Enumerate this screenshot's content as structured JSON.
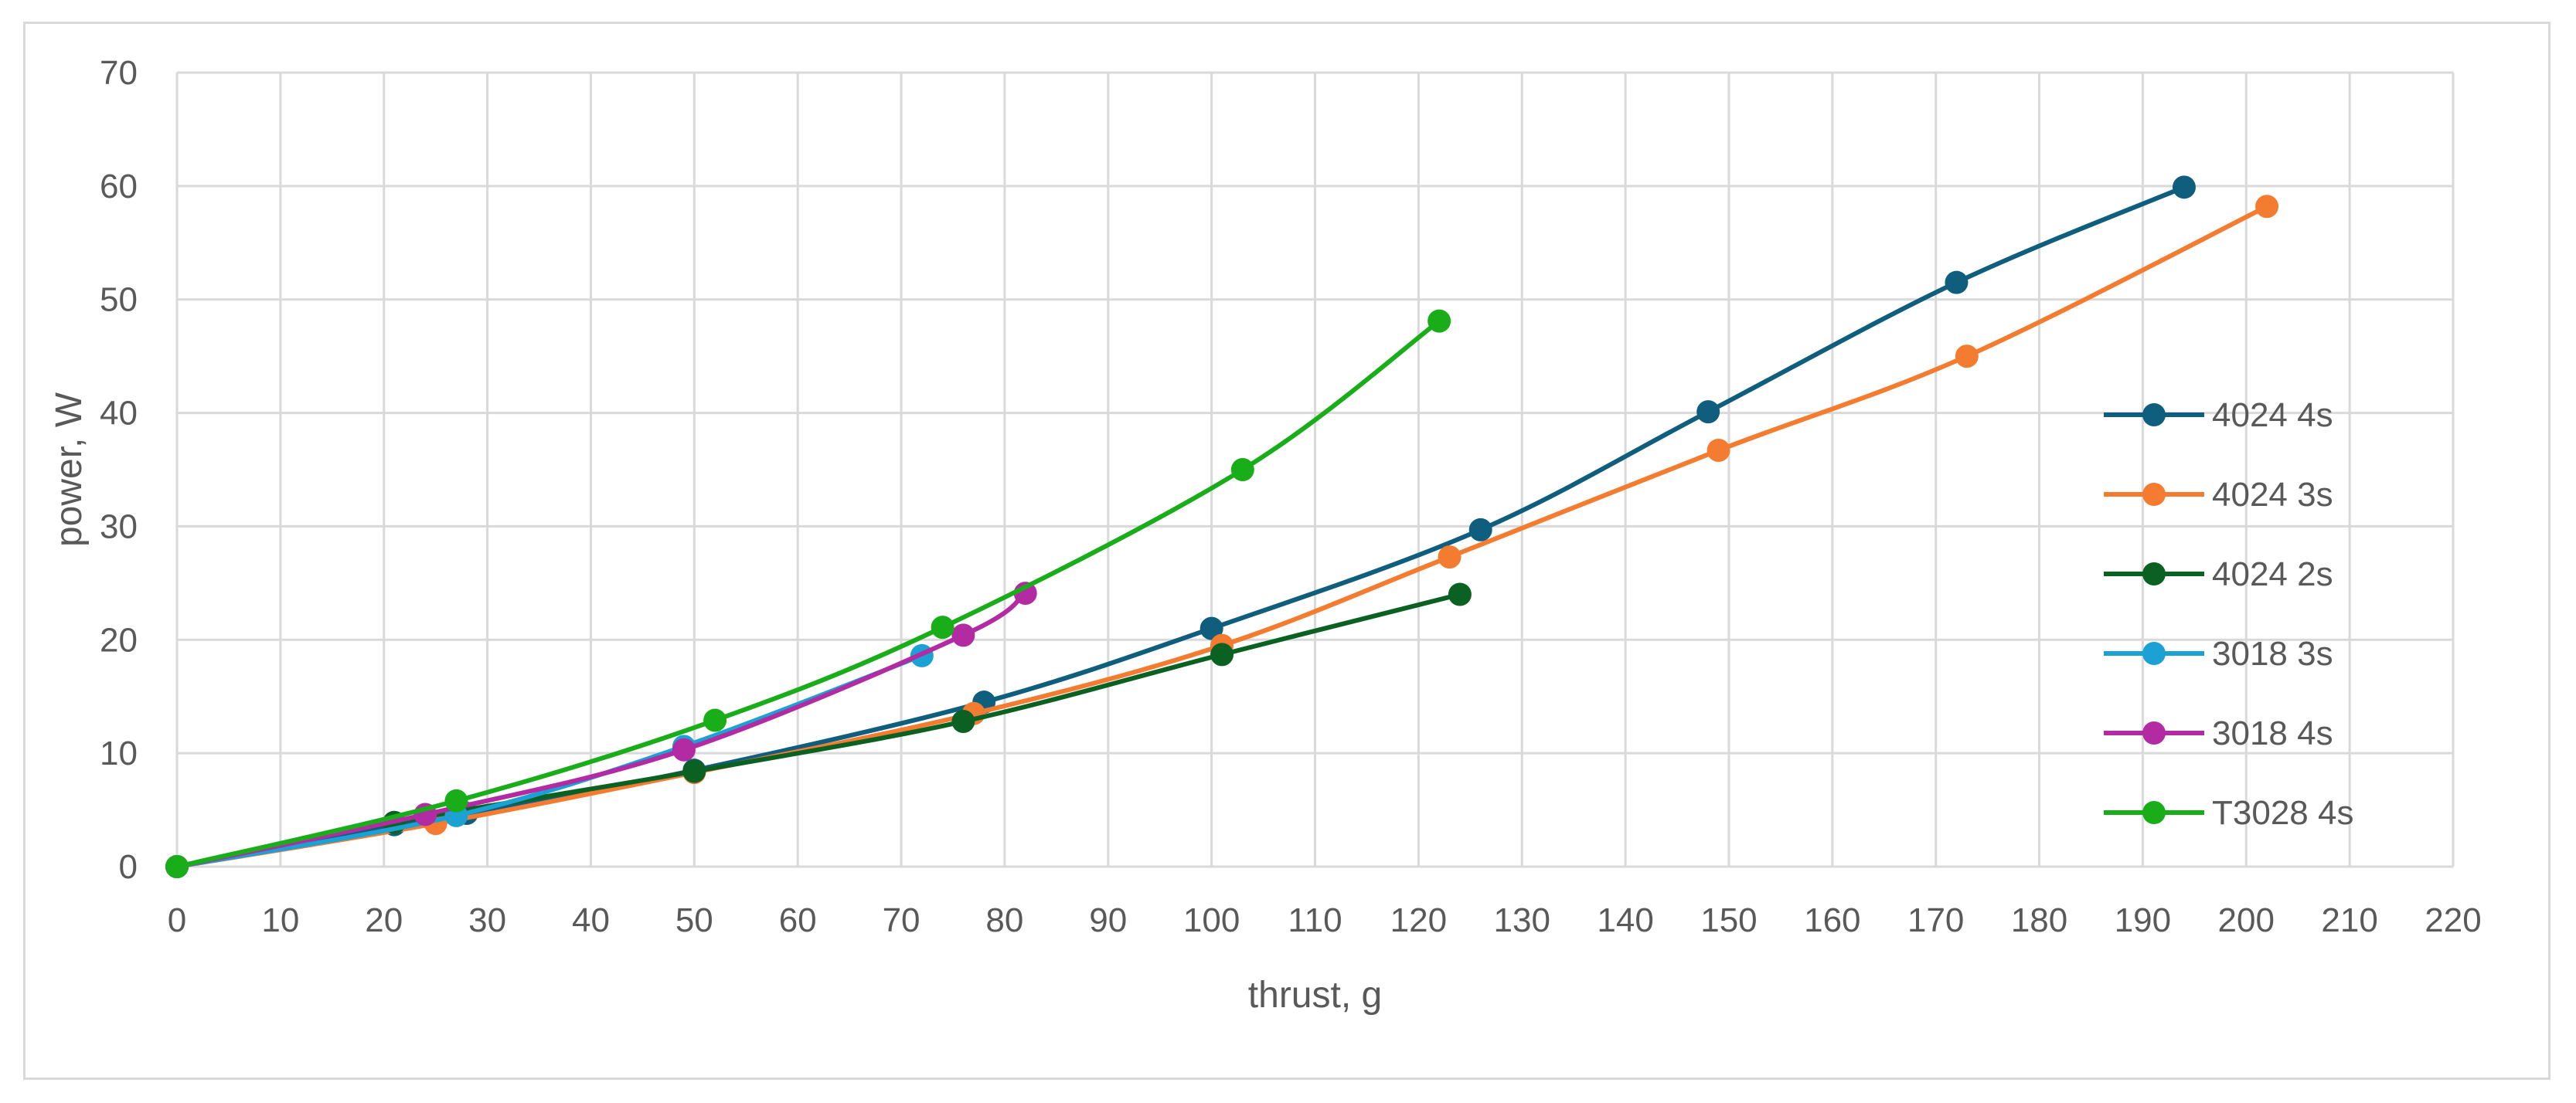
{
  "chart_data": {
    "type": "line",
    "title": "",
    "xlabel": "thrust, g",
    "ylabel": "power, W",
    "xlim": [
      0,
      220
    ],
    "ylim": [
      0,
      70
    ],
    "x_ticks": [
      0,
      10,
      20,
      30,
      40,
      50,
      60,
      70,
      80,
      90,
      100,
      110,
      120,
      130,
      140,
      150,
      160,
      170,
      180,
      190,
      200,
      210,
      220
    ],
    "y_ticks": [
      0,
      10,
      20,
      30,
      40,
      50,
      60,
      70
    ],
    "grid": true,
    "smooth": true,
    "legend_position": "right",
    "series": [
      {
        "name": "4024 4s",
        "color": "#0f5e7e",
        "points": [
          [
            0,
            0
          ],
          [
            21,
            3.7
          ],
          [
            28,
            4.7
          ],
          [
            50,
            8.5
          ],
          [
            78,
            14.5
          ],
          [
            100,
            21
          ],
          [
            126,
            29.7
          ],
          [
            148,
            40.1
          ],
          [
            172,
            51.5
          ],
          [
            194,
            59.9
          ]
        ]
      },
      {
        "name": "4024 3s",
        "color": "#f47c30",
        "points": [
          [
            0,
            0
          ],
          [
            25,
            3.8
          ],
          [
            50,
            8.3
          ],
          [
            77,
            13.5
          ],
          [
            101,
            19.5
          ],
          [
            123,
            27.3
          ],
          [
            149,
            36.7
          ],
          [
            173,
            45
          ],
          [
            202,
            58.2
          ]
        ]
      },
      {
        "name": "4024 2s",
        "color": "#0b6121",
        "points": [
          [
            0,
            0
          ],
          [
            21,
            3.9
          ],
          [
            50,
            8.4
          ],
          [
            76,
            12.8
          ],
          [
            101,
            18.7
          ],
          [
            124,
            24
          ]
        ]
      },
      {
        "name": "3018 3s",
        "color": "#1ba1d4",
        "points": [
          [
            0,
            0
          ],
          [
            27,
            4.5
          ],
          [
            49,
            10.6
          ],
          [
            72,
            18.6
          ]
        ]
      },
      {
        "name": "3018 4s",
        "color": "#b22ba3",
        "points": [
          [
            0,
            0
          ],
          [
            24,
            4.6
          ],
          [
            49,
            10.3
          ],
          [
            76,
            20.4
          ],
          [
            82,
            24.1
          ]
        ]
      },
      {
        "name": "T3028 4s",
        "color": "#1aad1a",
        "points": [
          [
            0,
            0
          ],
          [
            27,
            5.8
          ],
          [
            52,
            12.9
          ],
          [
            74,
            21.1
          ],
          [
            103,
            35
          ],
          [
            122,
            48.1
          ]
        ]
      }
    ]
  }
}
